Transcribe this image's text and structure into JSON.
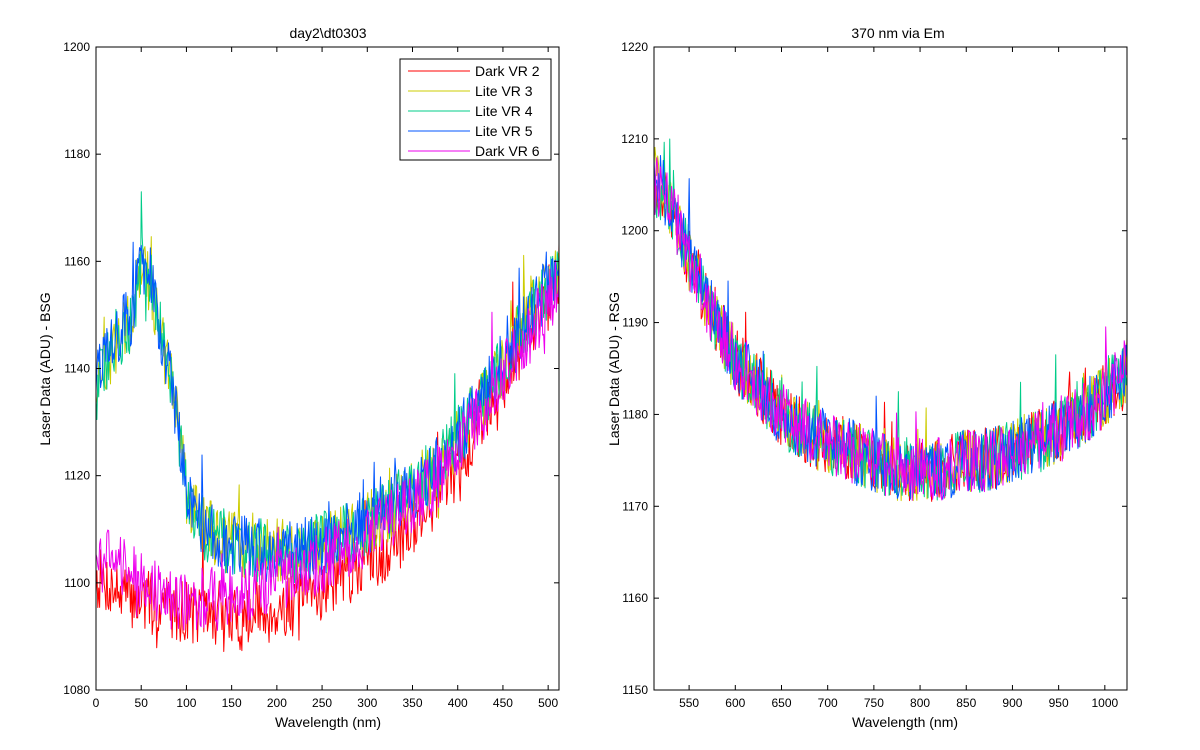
{
  "chart_data": [
    {
      "type": "line",
      "title": "day2\\dt0303",
      "xlabel": "Wavelength (nm)",
      "ylabel": "Laser Data (ADU) - BSG",
      "xlim": [
        0,
        512
      ],
      "ylim": [
        1080,
        1200
      ],
      "xticks": [
        0,
        50,
        100,
        150,
        200,
        250,
        300,
        350,
        400,
        450,
        500
      ],
      "yticks": [
        1080,
        1100,
        1120,
        1140,
        1160,
        1180,
        1200
      ],
      "grid": false,
      "legend_position": "top-right",
      "series": [
        {
          "name": "Dark VR 2",
          "color": "#ff0000",
          "x": [
            0,
            10,
            20,
            30,
            40,
            50,
            60,
            70,
            80,
            90,
            100,
            120,
            140,
            160,
            180,
            200,
            220,
            240,
            260,
            280,
            300,
            320,
            340,
            360,
            380,
            400,
            420,
            440,
            460,
            480,
            500,
            512
          ],
          "y": [
            1101,
            1100,
            1099,
            1098,
            1097,
            1097,
            1096,
            1096,
            1096,
            1095,
            1095,
            1094,
            1093,
            1093,
            1094,
            1095,
            1096,
            1098,
            1100,
            1102,
            1104,
            1106,
            1109,
            1113,
            1117,
            1122,
            1128,
            1135,
            1141,
            1147,
            1153,
            1158
          ]
        },
        {
          "name": "Lite VR 3",
          "color": "#cccc00",
          "x": [
            0,
            10,
            20,
            30,
            40,
            50,
            60,
            70,
            80,
            90,
            100,
            120,
            140,
            160,
            180,
            200,
            220,
            240,
            260,
            280,
            300,
            320,
            340,
            360,
            380,
            400,
            420,
            440,
            460,
            480,
            500,
            512
          ],
          "y": [
            1136,
            1140,
            1144,
            1147,
            1149,
            1160,
            1156,
            1148,
            1140,
            1130,
            1117,
            1110,
            1108,
            1107,
            1106,
            1106,
            1106,
            1107,
            1108,
            1109,
            1111,
            1113,
            1116,
            1119,
            1122,
            1127,
            1132,
            1138,
            1144,
            1150,
            1155,
            1158
          ]
        },
        {
          "name": "Lite VR 4",
          "color": "#00cc88",
          "x": [
            0,
            10,
            20,
            30,
            40,
            50,
            60,
            70,
            80,
            90,
            100,
            120,
            140,
            160,
            180,
            200,
            220,
            240,
            260,
            280,
            300,
            320,
            340,
            360,
            380,
            400,
            420,
            440,
            460,
            480,
            500,
            512
          ],
          "y": [
            1136,
            1140,
            1144,
            1147,
            1149,
            1160,
            1157,
            1149,
            1140,
            1129,
            1116,
            1110,
            1108,
            1107,
            1106,
            1106,
            1106,
            1107,
            1108,
            1109,
            1111,
            1113,
            1116,
            1119,
            1122,
            1127,
            1132,
            1138,
            1144,
            1150,
            1155,
            1158
          ]
        },
        {
          "name": "Lite VR 5",
          "color": "#0055ff",
          "x": [
            0,
            10,
            20,
            30,
            40,
            50,
            60,
            70,
            80,
            90,
            100,
            120,
            140,
            160,
            180,
            200,
            220,
            240,
            260,
            280,
            300,
            320,
            340,
            360,
            380,
            400,
            420,
            440,
            460,
            480,
            500,
            512
          ],
          "y": [
            1137,
            1141,
            1145,
            1148,
            1150,
            1161,
            1157,
            1149,
            1140,
            1130,
            1117,
            1110,
            1108,
            1107,
            1106,
            1106,
            1106,
            1107,
            1108,
            1109,
            1111,
            1113,
            1116,
            1119,
            1122,
            1127,
            1132,
            1138,
            1144,
            1150,
            1155,
            1158
          ]
        },
        {
          "name": "Dark VR 6",
          "color": "#ee00ee",
          "x": [
            0,
            10,
            20,
            30,
            40,
            50,
            60,
            70,
            80,
            90,
            100,
            120,
            140,
            160,
            180,
            200,
            220,
            240,
            260,
            280,
            300,
            320,
            340,
            360,
            380,
            400,
            420,
            440,
            460,
            480,
            500,
            512
          ],
          "y": [
            1106,
            1105,
            1104,
            1103,
            1101,
            1100,
            1099,
            1098,
            1097,
            1097,
            1097,
            1097,
            1097,
            1098,
            1099,
            1100,
            1101,
            1103,
            1105,
            1107,
            1109,
            1111,
            1113,
            1116,
            1120,
            1125,
            1130,
            1136,
            1142,
            1147,
            1152,
            1156
          ]
        }
      ]
    },
    {
      "type": "line",
      "title": "370 nm via Em",
      "xlabel": "Wavelength (nm)",
      "ylabel": "Laser Data (ADU) - RSG",
      "xlim": [
        512,
        1024
      ],
      "ylim": [
        1150,
        1220
      ],
      "xticks": [
        550,
        600,
        650,
        700,
        750,
        800,
        850,
        900,
        950,
        1000
      ],
      "yticks": [
        1150,
        1160,
        1170,
        1180,
        1190,
        1200,
        1210,
        1220
      ],
      "grid": false,
      "series": [
        {
          "name": "Dark VR 2",
          "color": "#ff0000",
          "x": [
            512,
            530,
            550,
            575,
            600,
            625,
            650,
            675,
            700,
            725,
            750,
            775,
            800,
            825,
            850,
            875,
            900,
            925,
            950,
            975,
            1000,
            1024
          ],
          "y": [
            1205,
            1203,
            1197,
            1191,
            1186,
            1183,
            1180,
            1178,
            1177,
            1176,
            1175,
            1174,
            1174,
            1174,
            1175,
            1175,
            1176,
            1177,
            1178,
            1180,
            1182,
            1185
          ]
        },
        {
          "name": "Lite VR 3",
          "color": "#cccc00",
          "x": [
            512,
            530,
            550,
            575,
            600,
            625,
            650,
            675,
            700,
            725,
            750,
            775,
            800,
            825,
            850,
            875,
            900,
            925,
            950,
            975,
            1000,
            1024
          ],
          "y": [
            1206,
            1203,
            1197,
            1191,
            1186,
            1183,
            1180,
            1178,
            1177,
            1176,
            1175,
            1174,
            1174,
            1174,
            1175,
            1175,
            1176,
            1177,
            1178,
            1180,
            1182,
            1185
          ]
        },
        {
          "name": "Lite VR 4",
          "color": "#00cc88",
          "x": [
            512,
            530,
            550,
            575,
            600,
            625,
            650,
            675,
            700,
            725,
            750,
            775,
            800,
            825,
            850,
            875,
            900,
            925,
            950,
            975,
            1000,
            1024
          ],
          "y": [
            1205,
            1203,
            1197,
            1191,
            1186,
            1183,
            1180,
            1178,
            1177,
            1176,
            1175,
            1174,
            1174,
            1174,
            1175,
            1175,
            1176,
            1177,
            1178,
            1180,
            1182,
            1185
          ]
        },
        {
          "name": "Lite VR 5",
          "color": "#0055ff",
          "x": [
            512,
            530,
            550,
            575,
            600,
            625,
            650,
            675,
            700,
            725,
            750,
            775,
            800,
            825,
            850,
            875,
            900,
            925,
            950,
            975,
            1000,
            1024
          ],
          "y": [
            1206,
            1203,
            1197,
            1191,
            1186,
            1183,
            1180,
            1178,
            1177,
            1176,
            1175,
            1174,
            1174,
            1174,
            1175,
            1175,
            1176,
            1177,
            1178,
            1180,
            1182,
            1185
          ]
        },
        {
          "name": "Dark VR 6",
          "color": "#ee00ee",
          "x": [
            512,
            530,
            550,
            575,
            600,
            625,
            650,
            675,
            700,
            725,
            750,
            775,
            800,
            825,
            850,
            875,
            900,
            925,
            950,
            975,
            1000,
            1024
          ],
          "y": [
            1205,
            1203,
            1197,
            1191,
            1186,
            1183,
            1180,
            1178,
            1177,
            1176,
            1175,
            1174,
            1174,
            1174,
            1175,
            1175,
            1176,
            1177,
            1178,
            1180,
            1182,
            1185
          ]
        }
      ]
    }
  ]
}
